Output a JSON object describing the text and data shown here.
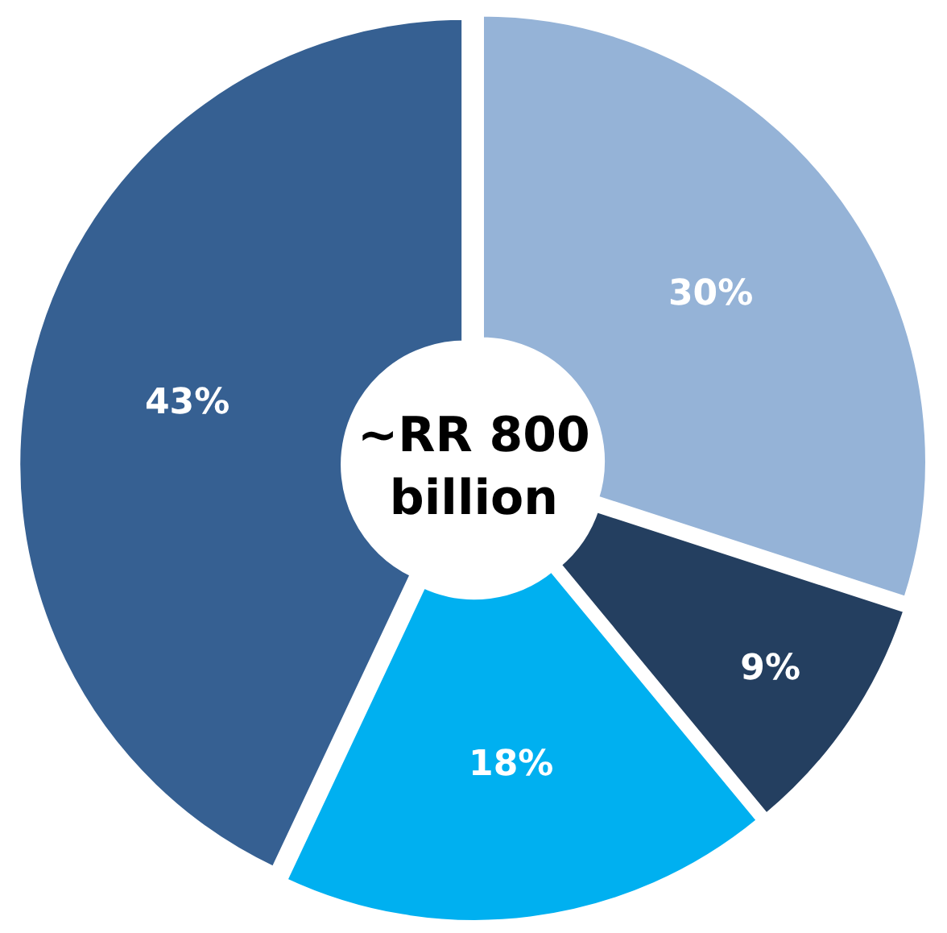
{
  "chart_data": {
    "type": "donut",
    "categories": [
      null,
      null,
      null,
      null
    ],
    "values": [
      30,
      9,
      18,
      43
    ],
    "colors": [
      "#95b3d7",
      "#243f60",
      "#00b0f0",
      "#366092"
    ],
    "value_labels": [
      "30%",
      "9%",
      "18%",
      "43%"
    ],
    "annotations": [
      "~RR 800\nbillion"
    ]
  }
}
